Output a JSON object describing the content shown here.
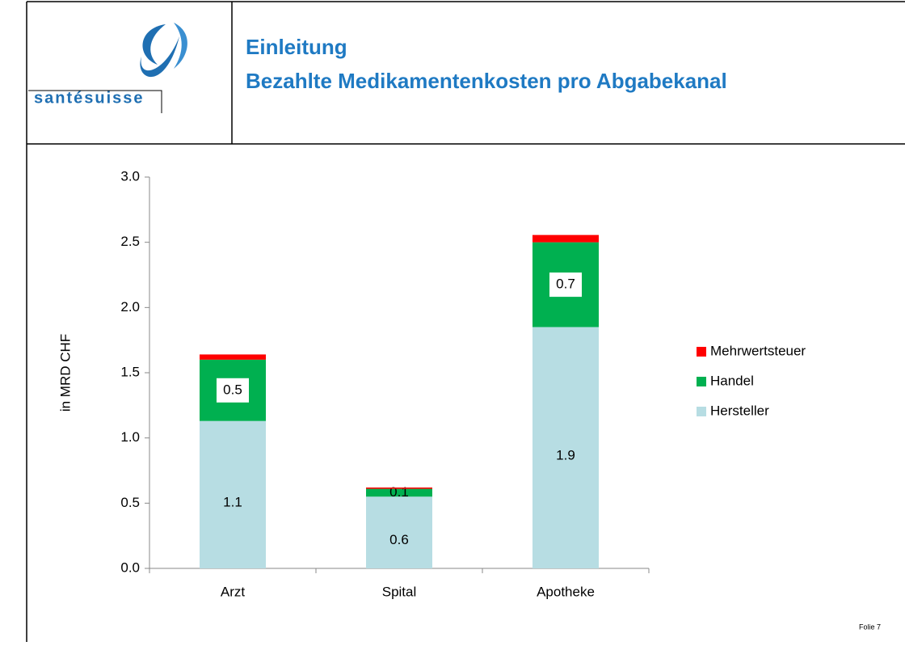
{
  "header": {
    "logo": "santésuisse",
    "title": "Einleitung",
    "subtitle": "Bezahlte Medikamentenkosten pro Abgabekanal"
  },
  "footer": "Folie 7",
  "chart_data": {
    "type": "stacked_bar",
    "y_label": "in MRD CHF",
    "categories": [
      "Arzt",
      "Spital",
      "Apotheke"
    ],
    "series": [
      {
        "name": "Hersteller",
        "color": "#b7dde3",
        "values": [
          1.13,
          0.55,
          1.85
        ],
        "value_labels": [
          "1.1",
          "0.6",
          "1.9"
        ]
      },
      {
        "name": "Handel",
        "color": "#00b050",
        "values": [
          0.47,
          0.06,
          0.65
        ],
        "value_labels": [
          "0.5",
          "0.1",
          "0.7"
        ]
      },
      {
        "name": "Mehrwertsteuer",
        "color": "#ff0000",
        "values": [
          0.04,
          0.01,
          0.056
        ]
      }
    ],
    "ylim": [
      0,
      3
    ],
    "yticks": [
      {
        "value": 0,
        "label": "0.0"
      },
      0.5,
      {
        "value": 1,
        "label": "1.0"
      },
      1.5,
      {
        "value": 2,
        "label": "2.0"
      },
      2.5,
      {
        "value": 3,
        "label": "3.0"
      }
    ],
    "legend": "right"
  }
}
